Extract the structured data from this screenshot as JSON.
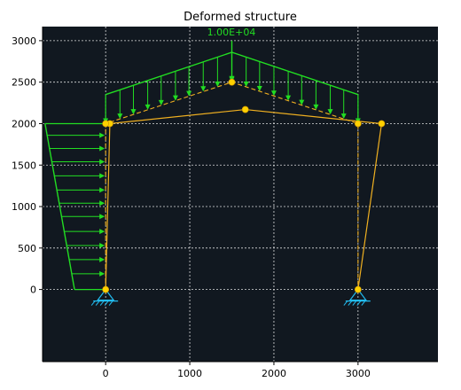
{
  "chart_data": {
    "type": "diagram",
    "title": "Deformed structure",
    "load_label": "1.00E+04",
    "background": "#111820",
    "colors": {
      "load": "#22dd22",
      "structure": "#f0b020",
      "node": "#ffd000",
      "support": "#22bbee",
      "grid": "#ffffff"
    },
    "xlim": [
      -750,
      3950
    ],
    "ylim": [
      -870,
      3170
    ],
    "x_ticks": [
      "0",
      "1000",
      "2000",
      "3000"
    ],
    "x_tick_values": [
      0,
      1000,
      2000,
      3000
    ],
    "y_ticks": [
      "0",
      "500",
      "1000",
      "1500",
      "2000",
      "2500",
      "3000"
    ],
    "y_tick_values": [
      0,
      500,
      1000,
      1500,
      2000,
      2500,
      3000
    ],
    "grid": true,
    "original_nodes": [
      [
        0,
        0
      ],
      [
        0,
        2000
      ],
      [
        1500,
        2500
      ],
      [
        3000,
        2000
      ],
      [
        3000,
        0
      ]
    ],
    "deformed_nodes": [
      [
        0,
        0
      ],
      [
        50,
        2000
      ],
      [
        1660,
        2170
      ],
      [
        3280,
        2000
      ],
      [
        3000,
        0
      ]
    ],
    "extra_nodes": [
      [
        0,
        2000
      ],
      [
        3000,
        2000
      ],
      [
        1500,
        2500
      ]
    ],
    "supports": [
      [
        0,
        0
      ],
      [
        3000,
        0
      ]
    ],
    "lateral_load": {
      "top_y": 2000,
      "bottom_y": 0,
      "tail_x_top": -720,
      "tail_x_bottom": -370,
      "head_x": 0,
      "arrow_ys": [
        1860,
        1700,
        1540,
        1370,
        1200,
        1040,
        880,
        700,
        530,
        360,
        190
      ]
    },
    "roof_load": {
      "left": [
        0,
        2350
      ],
      "peak": [
        1500,
        2860
      ],
      "right": [
        3000,
        2350
      ],
      "arrow_xs": [
        170,
        330,
        500,
        660,
        830,
        990,
        1160,
        1330,
        1500,
        1670,
        1830,
        2000,
        2170,
        2330,
        2500,
        2670,
        2830
      ]
    }
  }
}
